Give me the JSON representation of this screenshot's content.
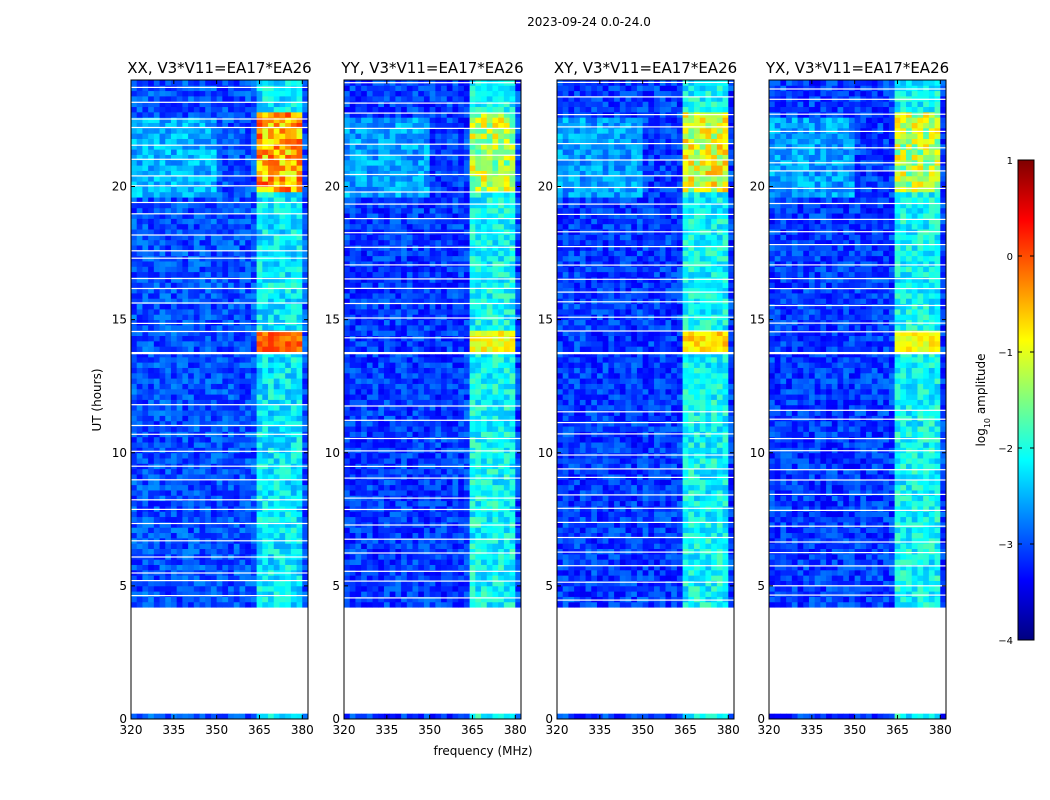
{
  "figure_title": "2023-09-24 0.0-24.0",
  "colorbar": {
    "label": "log10 amplitude",
    "label_prefix": "log",
    "label_sub": "10",
    "label_suffix": " amplitude",
    "ticks": [
      "1",
      "0",
      "−1",
      "−2",
      "−3",
      "−4"
    ],
    "tick_values": [
      1,
      0,
      -1,
      -2,
      -3,
      -4
    ],
    "range": [
      -4,
      1
    ],
    "colormap": "jet"
  },
  "chart_data": {
    "type": "heatmap",
    "title": "2023-09-24 0.0-24.0",
    "xlabel": "frequency (MHz)",
    "ylabel": "UT (hours)",
    "xlim": [
      320,
      382
    ],
    "ylim": [
      0,
      24
    ],
    "x_ticks": [
      320,
      335,
      350,
      365,
      380
    ],
    "x_tick_labels": [
      "320",
      "335",
      "350",
      "365",
      "380"
    ],
    "y_ticks": [
      0,
      5,
      10,
      15,
      20
    ],
    "y_tick_labels": [
      "0",
      "5",
      "10",
      "15",
      "20"
    ],
    "value_label": "log10 amplitude",
    "value_range": [
      -4,
      1
    ],
    "data_coverage_ut": [
      [
        0.0,
        0.2
      ],
      [
        4.2,
        13.7
      ],
      [
        13.8,
        24.0
      ]
    ],
    "gap_ut": [
      [
        0.2,
        4.2
      ],
      [
        12.2,
        12.3
      ]
    ],
    "rfi_bands_mhz": [
      [
        364,
        368
      ],
      [
        369,
        373
      ],
      [
        374,
        376
      ],
      [
        377,
        380
      ]
    ],
    "panels": [
      {
        "name": "XX",
        "title": "XX, V3*V11=EA17*EA26",
        "background_level": -3.0,
        "rfi_level": -2.2,
        "rfi_peak_level": 0.2
      },
      {
        "name": "YY",
        "title": "YY, V3*V11=EA17*EA26",
        "background_level": -3.1,
        "rfi_level": -2.1,
        "rfi_peak_level": -0.6
      },
      {
        "name": "XY",
        "title": "XY, V3*V11=EA17*EA26",
        "background_level": -3.1,
        "rfi_level": -2.1,
        "rfi_peak_level": -0.4
      },
      {
        "name": "YX",
        "title": "YX, V3*V11=EA17*EA26",
        "background_level": -3.1,
        "rfi_level": -2.1,
        "rfi_peak_level": -0.6
      }
    ]
  }
}
